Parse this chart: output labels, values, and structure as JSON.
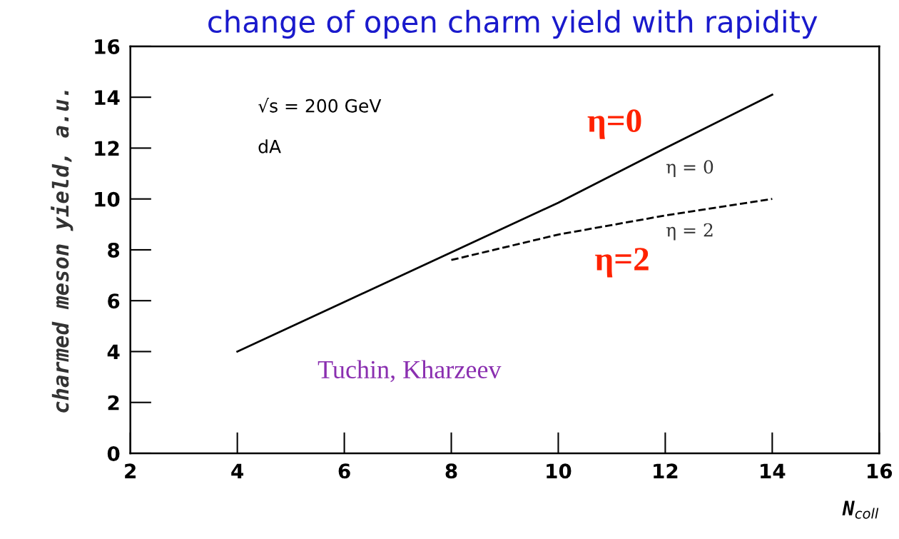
{
  "chart_data": {
    "type": "line",
    "title": "change of open charm yield with rapidity",
    "xlabel": "N$_{coll}$",
    "ylabel": "charmed meson yield, a.u.",
    "xlim": [
      2,
      16
    ],
    "xticks": [
      2,
      4,
      6,
      8,
      10,
      12,
      14,
      16
    ],
    "ylim": [
      0,
      16
    ],
    "yticks": [
      0,
      2,
      4,
      6,
      8,
      10,
      12,
      14,
      16
    ],
    "grid": false,
    "legend": false,
    "series": [
      {
        "color": "#000000",
        "line_style": "solid",
        "x": [
          4,
          6,
          8,
          10,
          12,
          14
        ],
        "values": [
          4,
          5.95,
          7.9,
          9.85,
          12.0,
          14.1
        ]
      },
      {
        "color": "#000000",
        "line_style": "dashed",
        "x": [
          8,
          10,
          12,
          14
        ],
        "values": [
          7.6,
          8.6,
          9.35,
          10.0
        ]
      }
    ],
    "annotations": [
      "√s = 200 GeV",
      "dA",
      "η = 0",
      "η = 2",
      "η=0",
      "η=2",
      "Tuchin, Kharzeev"
    ]
  }
}
